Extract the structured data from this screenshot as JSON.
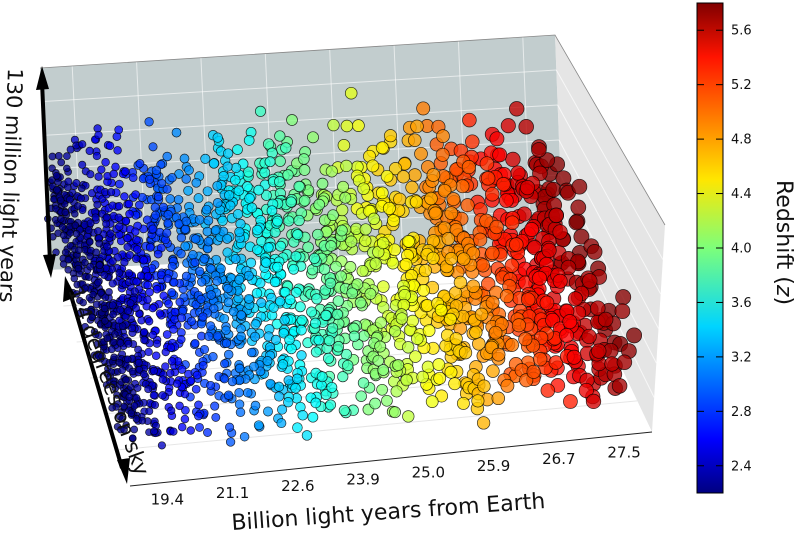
{
  "chart_data": {
    "type": "scatter",
    "projection": "3d",
    "x_label": "Billion light years from Earth",
    "x_ticks": [
      "19.4",
      "21.1",
      "22.6",
      "23.9",
      "25.0",
      "25.9",
      "26.7",
      "27.5"
    ],
    "vertical_label": "130 million light years",
    "depth_label": "1.4 degrees on sky",
    "colorbar": {
      "label": "Redshift",
      "symbol": "z",
      "ticks": [
        "2.4",
        "2.8",
        "3.2",
        "3.6",
        "4.0",
        "4.4",
        "4.8",
        "5.2",
        "5.6"
      ],
      "range": [
        2.2,
        5.8
      ],
      "colormap": "jet"
    },
    "redshift_range": [
      2.2,
      5.8
    ],
    "pane_colors": {
      "back_wall": "#b7c4c6",
      "side_wall": "#dcdcdc",
      "floor": "#ffffff"
    },
    "point_count": 2400
  }
}
